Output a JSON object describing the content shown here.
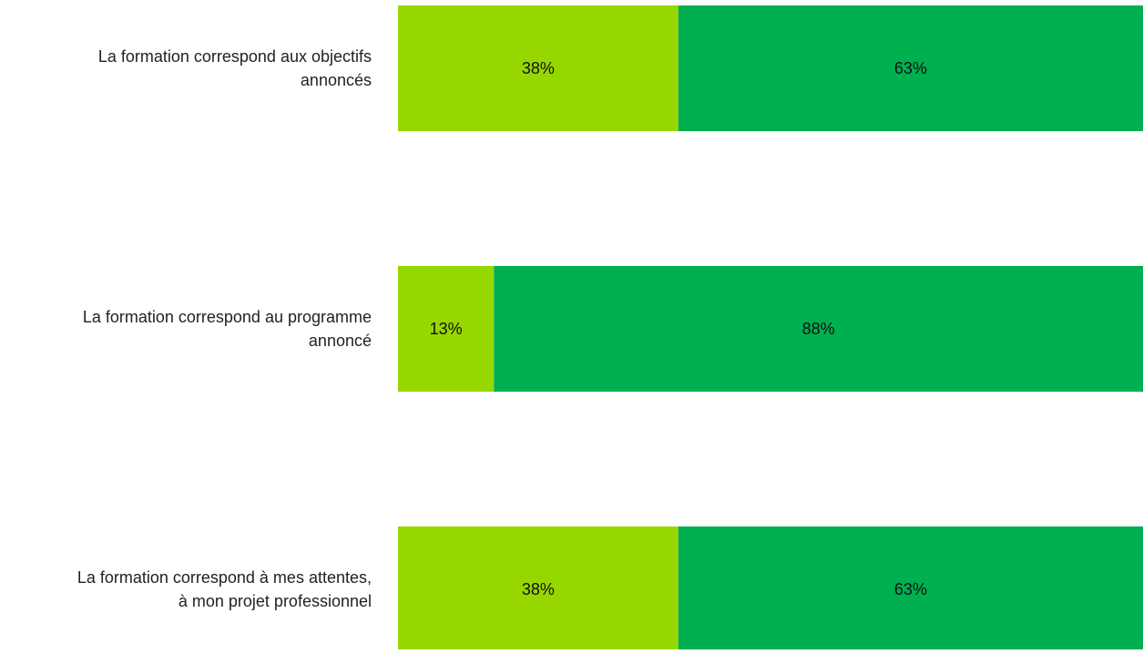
{
  "chart_data": {
    "type": "bar",
    "orientation": "horizontal",
    "stacked": true,
    "categories": [
      "La formation correspond aux objectifs\nannoncés",
      "La formation correspond au programme\nannoncé",
      "La formation correspond à mes attentes,\nà mon projet professionnel"
    ],
    "series": [
      {
        "color": "#97d700",
        "values": [
          38,
          13,
          38
        ],
        "labels": [
          "38%",
          "13%",
          "38%"
        ]
      },
      {
        "color": "#00af50",
        "values": [
          63,
          88,
          63
        ],
        "labels": [
          "63%",
          "88%",
          "63%"
        ]
      }
    ],
    "xlim": [
      0,
      100
    ],
    "grid": false,
    "legend": "none"
  }
}
